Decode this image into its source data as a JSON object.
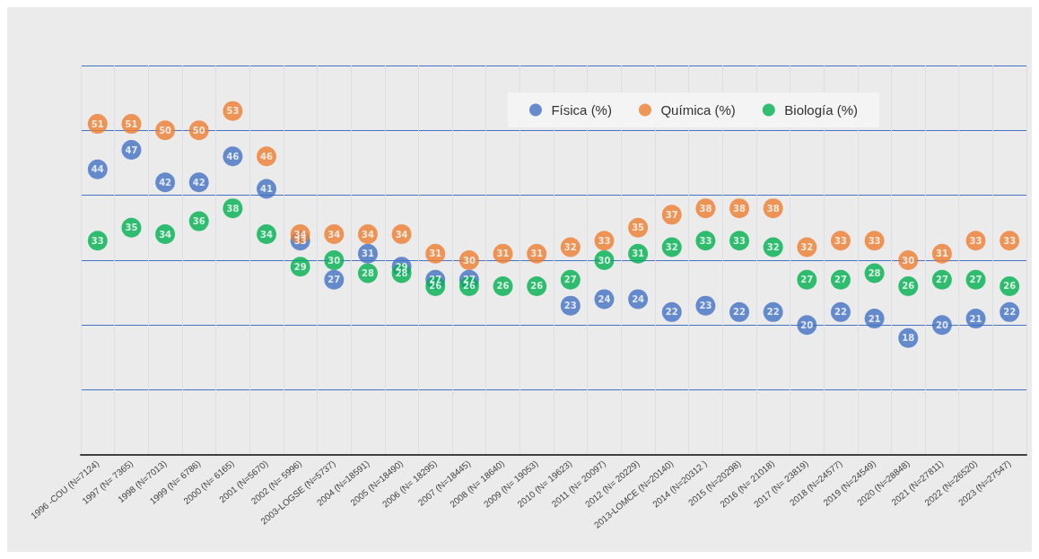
{
  "chart_data": {
    "type": "scatter",
    "categories": [
      "1996 -COU (N=7124)",
      "1997 (N= 7365)",
      "1998 (N=7013)",
      "1999 (N= 6786)",
      "2000 (N= 6165)",
      "2001 (N=5670)",
      "2002 (N= 5996)",
      "2003-LOGSE (N=5737)",
      "2004 (N=18591)",
      "2005 (N=18490)",
      "2006 (N= 18295)",
      "2007 (N=18445)",
      "2008 (N= 18640)",
      "2009 (N= 19053)",
      "2010 (N= 19623)",
      "2011 (N= 20097)",
      "2012 (N= 20229)",
      "2013-LOMCE (N=20140)",
      "2014 (N=20312 )",
      "2015 (N=20298)",
      "2016 (N= 21018)",
      "2017 (N= 23819)",
      "2018 (N=24577)",
      "2019 (N=24549)",
      "2020 (N=28848)",
      "2021 (N=27811)",
      "2022 (N=26520)",
      "2023 (N=27547)"
    ],
    "series": [
      {
        "name": "Física (%)",
        "color": "#4472c4",
        "values": [
          44,
          47,
          42,
          42,
          46,
          41,
          33,
          27,
          31,
          29,
          27,
          27,
          null,
          null,
          23,
          24,
          24,
          22,
          23,
          22,
          22,
          20,
          22,
          21,
          18,
          20,
          21,
          22
        ]
      },
      {
        "name": "Química (%)",
        "color": "#ed7d31",
        "values": [
          51,
          51,
          50,
          50,
          53,
          46,
          34,
          34,
          34,
          34,
          31,
          30,
          31,
          31,
          32,
          33,
          35,
          37,
          38,
          38,
          38,
          32,
          33,
          33,
          30,
          31,
          33,
          33
        ]
      },
      {
        "name": "Biología (%)",
        "color": "#00b050",
        "values": [
          33,
          35,
          34,
          36,
          38,
          34,
          29,
          30,
          28,
          28,
          26,
          26,
          26,
          26,
          27,
          30,
          31,
          32,
          33,
          33,
          32,
          27,
          27,
          28,
          26,
          27,
          27,
          26
        ]
      }
    ],
    "ylim": [
      0,
      60
    ],
    "yticks": [
      {
        "value": 0,
        "label": null
      },
      {
        "value": 10,
        "label": null
      },
      {
        "value": 20,
        "label": null
      },
      {
        "value": 30,
        "label": null
      },
      {
        "value": 40,
        "label": null
      },
      {
        "value": 50,
        "label": null
      },
      {
        "value": 60,
        "label": null
      }
    ],
    "tick_labels": "x",
    "grid": true,
    "legend": "top right",
    "marker": "circle",
    "data_labels": true
  }
}
